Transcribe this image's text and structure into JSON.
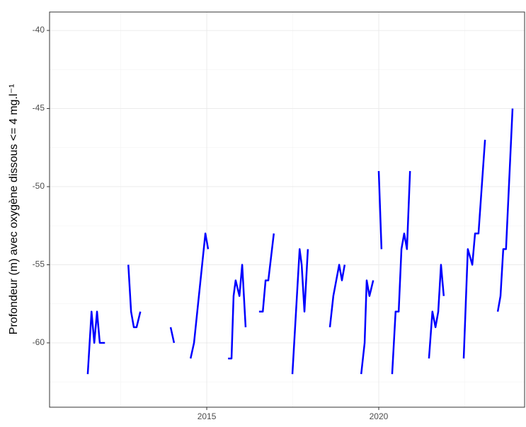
{
  "chart_data": {
    "type": "line",
    "y_label": "Profondeur (m) avec oxygène dissous <= 4 mg.l⁻¹",
    "x": [
      2011.54,
      2011.65,
      2011.73,
      2011.81,
      2011.89,
      2012.04,
      null,
      2012.72,
      2012.8,
      2012.88,
      2012.96,
      2013.07,
      null,
      2013.95,
      2014.05,
      null,
      2014.53,
      2014.63,
      2014.96,
      2015.04,
      null,
      2015.62,
      2015.72,
      2015.78,
      2015.84,
      2015.95,
      2016.03,
      2016.13,
      null,
      2016.52,
      2016.63,
      2016.71,
      2016.79,
      2016.95,
      null,
      2017.49,
      2017.7,
      2017.76,
      2017.84,
      2017.94,
      null,
      2018.58,
      2018.68,
      2018.85,
      2018.93,
      2019.01,
      null,
      2019.49,
      2019.59,
      2019.65,
      2019.73,
      2019.84,
      null,
      2020.0,
      2020.08,
      null,
      2020.39,
      2020.49,
      2020.58,
      2020.66,
      2020.74,
      2020.82,
      2020.91,
      null,
      2021.46,
      2021.56,
      2021.65,
      2021.73,
      2021.81,
      2021.89,
      null,
      2022.47,
      2022.59,
      2022.72,
      2022.8,
      2022.9,
      2023.09,
      null,
      2023.46,
      2023.54,
      2023.62,
      2023.7,
      2023.89
    ],
    "series": [
      {
        "name": "Profondeur",
        "color": "#0000ff",
        "values": [
          -62,
          -58,
          -60,
          -58,
          -60,
          -60,
          null,
          -55,
          -58,
          -59,
          -59,
          -58,
          null,
          -59,
          -60,
          null,
          -61,
          -60,
          -53,
          -54,
          null,
          -61,
          -61,
          -57,
          -56,
          -57,
          -55,
          -59,
          null,
          -58,
          -58,
          -56,
          -56,
          -53,
          null,
          -62,
          -54,
          -55,
          -58,
          -54,
          null,
          -59,
          -57,
          -55,
          -56,
          -55,
          null,
          -62,
          -60,
          -56,
          -57,
          -56,
          null,
          -49,
          -54,
          null,
          -62,
          -58,
          -58,
          -54,
          -53,
          -54,
          -49,
          null,
          -61,
          -58,
          -59,
          -58,
          -55,
          -57,
          null,
          -61,
          -54,
          -55,
          -53,
          -53,
          -47,
          null,
          -58,
          -57,
          -54,
          -54,
          -45
        ]
      }
    ],
    "xlim": [
      2010.43,
      2024.24
    ],
    "xticks": [
      2015,
      2020
    ],
    "ylim": [
      -64.12,
      -38.82
    ],
    "yticks": [
      -60,
      -55,
      -50,
      -45,
      -40
    ],
    "grid": true
  }
}
